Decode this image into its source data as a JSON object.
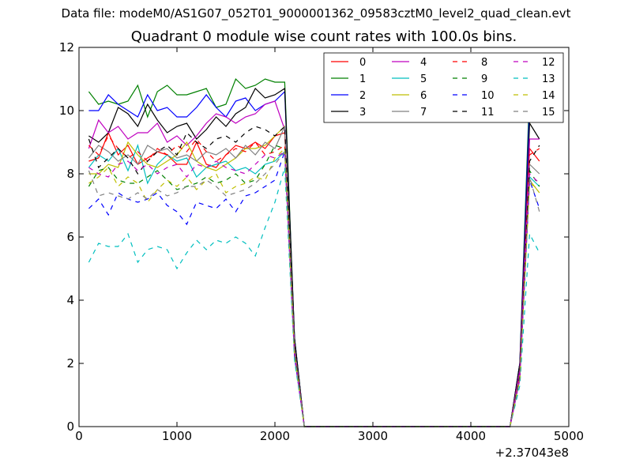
{
  "file_label": "Data file: modeM0/AS1G07_052T01_9000001362_09583cztM0_level2_quad_clean.evt",
  "chart_data": {
    "type": "line",
    "title": "Quadrant 0 module wise count rates with 100.0s bins.",
    "xlabel": "",
    "ylabel": "",
    "x_offset_label": "+2.37043e8",
    "xlim": [
      0,
      5000
    ],
    "ylim": [
      0,
      12
    ],
    "xticks": [
      0,
      1000,
      2000,
      3000,
      4000,
      5000
    ],
    "yticks": [
      0,
      2,
      4,
      6,
      8,
      10,
      12
    ],
    "grid": false,
    "legend_position": "top-right",
    "legend_columns": 4,
    "x": [
      100,
      200,
      300,
      400,
      500,
      600,
      700,
      800,
      900,
      1000,
      1100,
      1200,
      1300,
      1400,
      1500,
      1600,
      1700,
      1800,
      1900,
      2000,
      2100,
      2200,
      2300,
      2400,
      2500,
      2600,
      2700,
      2800,
      2900,
      3000,
      3100,
      3200,
      3300,
      3400,
      3500,
      3600,
      3700,
      3800,
      3900,
      4000,
      4100,
      4200,
      4300,
      4400,
      4500,
      4600,
      4700
    ],
    "series": [
      {
        "name": "0",
        "color": "#ff0000",
        "dash": "solid",
        "values": [
          8.4,
          8.5,
          9.3,
          8.6,
          8.9,
          8.3,
          8.5,
          8.7,
          8.6,
          8.3,
          8.3,
          9.0,
          8.3,
          8.2,
          8.6,
          8.9,
          8.8,
          9.0,
          8.8,
          9.2,
          9.3,
          2.5,
          0,
          0,
          0,
          0,
          0,
          0,
          0,
          0,
          0,
          0,
          0,
          0,
          0,
          0,
          0,
          0,
          0,
          0,
          0,
          0,
          0,
          0,
          1.6,
          8.8,
          8.4
        ]
      },
      {
        "name": "1",
        "color": "#008000",
        "dash": "solid",
        "values": [
          10.6,
          10.2,
          10.3,
          10.2,
          10.3,
          10.8,
          9.8,
          10.6,
          10.8,
          10.5,
          10.5,
          10.6,
          10.7,
          10.1,
          10.2,
          11.0,
          10.7,
          10.8,
          11.0,
          10.9,
          10.9,
          2.8,
          0,
          0,
          0,
          0,
          0,
          0,
          0,
          0,
          0,
          0,
          0,
          0,
          0,
          0,
          0,
          0,
          0,
          0,
          0,
          0,
          0,
          0,
          2.0,
          10.7,
          10.2
        ]
      },
      {
        "name": "2",
        "color": "#0000ff",
        "dash": "solid",
        "values": [
          10.0,
          10.0,
          10.5,
          10.2,
          10.0,
          9.8,
          10.5,
          10.0,
          10.1,
          9.8,
          9.8,
          10.1,
          10.5,
          10.1,
          9.8,
          10.3,
          10.4,
          10.0,
          10.2,
          10.3,
          10.6,
          2.8,
          0,
          0,
          0,
          0,
          0,
          0,
          0,
          0,
          0,
          0,
          0,
          0,
          0,
          0,
          0,
          0,
          0,
          0,
          0,
          0,
          0,
          0,
          2.0,
          10.2,
          9.8
        ]
      },
      {
        "name": "3",
        "color": "#000000",
        "dash": "solid",
        "values": [
          9.2,
          9.0,
          9.3,
          10.1,
          9.9,
          9.5,
          10.2,
          9.7,
          9.3,
          9.5,
          9.6,
          9.1,
          9.4,
          9.8,
          9.5,
          9.9,
          10.1,
          10.7,
          10.4,
          10.5,
          10.7,
          2.8,
          0,
          0,
          0,
          0,
          0,
          0,
          0,
          0,
          0,
          0,
          0,
          0,
          0,
          0,
          0,
          0,
          0,
          0,
          0,
          0,
          0,
          0,
          2.0,
          9.6,
          9.1
        ]
      },
      {
        "name": "4",
        "color": "#bf00bf",
        "dash": "solid",
        "values": [
          8.8,
          9.7,
          9.3,
          9.5,
          9.1,
          9.3,
          9.3,
          9.6,
          9.0,
          9.2,
          8.9,
          9.2,
          9.6,
          9.9,
          9.8,
          9.6,
          9.8,
          9.9,
          10.2,
          10.3,
          9.4,
          2.5,
          0,
          0,
          0,
          0,
          0,
          0,
          0,
          0,
          0,
          0,
          0,
          0,
          0,
          0,
          0,
          0,
          0,
          0,
          0,
          0,
          0,
          0,
          1.8,
          9.1,
          9.1
        ]
      },
      {
        "name": "5",
        "color": "#00bfbf",
        "dash": "solid",
        "values": [
          8.2,
          8.6,
          8.4,
          8.8,
          8.1,
          8.9,
          7.7,
          8.3,
          8.6,
          8.4,
          8.5,
          7.9,
          8.2,
          8.3,
          8.4,
          8.1,
          8.2,
          8.0,
          8.3,
          8.4,
          8.7,
          2.4,
          0,
          0,
          0,
          0,
          0,
          0,
          0,
          0,
          0,
          0,
          0,
          0,
          0,
          0,
          0,
          0,
          0,
          0,
          0,
          0,
          0,
          0,
          1.6,
          7.9,
          7.6
        ]
      },
      {
        "name": "6",
        "color": "#bfbf00",
        "dash": "solid",
        "values": [
          8.0,
          8.0,
          8.3,
          8.2,
          9.0,
          8.6,
          8.3,
          8.2,
          8.4,
          8.6,
          9.0,
          8.4,
          8.2,
          8.1,
          8.3,
          8.5,
          8.8,
          8.8,
          8.9,
          9.2,
          9.5,
          2.4,
          0,
          0,
          0,
          0,
          0,
          0,
          0,
          0,
          0,
          0,
          0,
          0,
          0,
          0,
          0,
          0,
          0,
          0,
          0,
          0,
          0,
          0,
          1.6,
          7.8,
          7.4
        ]
      },
      {
        "name": "7",
        "color": "#808080",
        "dash": "solid",
        "values": [
          8.5,
          8.9,
          8.7,
          8.4,
          8.6,
          8.3,
          8.9,
          8.7,
          8.8,
          8.5,
          8.6,
          8.4,
          8.7,
          8.6,
          8.8,
          8.5,
          8.9,
          8.6,
          9.0,
          8.8,
          9.5,
          2.5,
          0,
          0,
          0,
          0,
          0,
          0,
          0,
          0,
          0,
          0,
          0,
          0,
          0,
          0,
          0,
          0,
          0,
          0,
          0,
          0,
          0,
          0,
          1.6,
          8.3,
          8.0
        ]
      },
      {
        "name": "8",
        "color": "#ff0000",
        "dash": "dashed",
        "values": [
          8.9,
          8.6,
          9.2,
          8.8,
          8.5,
          8.7,
          8.4,
          8.8,
          8.6,
          8.9,
          8.7,
          9.1,
          8.7,
          8.4,
          8.6,
          8.8,
          8.7,
          9.0,
          8.6,
          8.7,
          8.9,
          2.4,
          0,
          0,
          0,
          0,
          0,
          0,
          0,
          0,
          0,
          0,
          0,
          0,
          0,
          0,
          0,
          0,
          0,
          0,
          0,
          0,
          0,
          0,
          1.6,
          8.6,
          8.8
        ]
      },
      {
        "name": "9",
        "color": "#008000",
        "dash": "dashed",
        "values": [
          7.6,
          8.1,
          8.2,
          7.8,
          7.7,
          7.7,
          7.9,
          8.1,
          7.8,
          7.5,
          7.6,
          7.7,
          7.9,
          7.7,
          7.8,
          8.0,
          7.7,
          7.8,
          8.3,
          8.9,
          8.8,
          2.3,
          0,
          0,
          0,
          0,
          0,
          0,
          0,
          0,
          0,
          0,
          0,
          0,
          0,
          0,
          0,
          0,
          0,
          0,
          0,
          0,
          0,
          0,
          1.5,
          8.1,
          7.6
        ]
      },
      {
        "name": "10",
        "color": "#0000ff",
        "dash": "dashed",
        "values": [
          6.9,
          7.2,
          6.7,
          7.4,
          7.2,
          7.1,
          7.2,
          7.4,
          7.0,
          6.8,
          6.4,
          7.1,
          7.0,
          6.9,
          7.2,
          6.8,
          7.3,
          7.4,
          7.6,
          7.8,
          8.7,
          2.2,
          0,
          0,
          0,
          0,
          0,
          0,
          0,
          0,
          0,
          0,
          0,
          0,
          0,
          0,
          0,
          0,
          0,
          0,
          0,
          0,
          0,
          0,
          1.5,
          7.8,
          6.9
        ]
      },
      {
        "name": "11",
        "color": "#000000",
        "dash": "dashed",
        "values": [
          9.1,
          8.2,
          8.5,
          8.8,
          8.5,
          8.0,
          8.4,
          8.7,
          8.9,
          8.6,
          9.3,
          9.0,
          8.8,
          9.1,
          9.2,
          9.0,
          9.3,
          9.5,
          9.4,
          9.2,
          9.5,
          2.4,
          0,
          0,
          0,
          0,
          0,
          0,
          0,
          0,
          0,
          0,
          0,
          0,
          0,
          0,
          0,
          0,
          0,
          0,
          0,
          0,
          0,
          0,
          1.6,
          8.4,
          8.9
        ]
      },
      {
        "name": "12",
        "color": "#bf00bf",
        "dash": "dashed",
        "values": [
          8.2,
          8.0,
          7.9,
          8.3,
          8.4,
          8.1,
          8.3,
          8.0,
          8.2,
          8.3,
          7.9,
          8.3,
          8.2,
          8.4,
          8.2,
          8.1,
          8.0,
          8.3,
          8.6,
          8.5,
          8.7,
          2.3,
          0,
          0,
          0,
          0,
          0,
          0,
          0,
          0,
          0,
          0,
          0,
          0,
          0,
          0,
          0,
          0,
          0,
          0,
          0,
          0,
          0,
          0,
          1.5,
          8.0,
          7.7
        ]
      },
      {
        "name": "13",
        "color": "#00bfbf",
        "dash": "dashed",
        "values": [
          5.2,
          5.8,
          5.7,
          5.7,
          6.1,
          5.2,
          5.6,
          5.7,
          5.6,
          5.0,
          5.5,
          5.9,
          5.6,
          5.9,
          5.8,
          6.0,
          5.8,
          5.4,
          6.3,
          7.1,
          8.2,
          2.1,
          0,
          0,
          0,
          0,
          0,
          0,
          0,
          0,
          0,
          0,
          0,
          0,
          0,
          0,
          0,
          0,
          0,
          0,
          0,
          0,
          0,
          0,
          1.3,
          6.1,
          5.5
        ]
      },
      {
        "name": "14",
        "color": "#bfbf00",
        "dash": "dashed",
        "values": [
          7.7,
          7.9,
          8.2,
          7.6,
          7.9,
          7.7,
          7.1,
          7.5,
          7.8,
          7.6,
          7.9,
          7.5,
          7.8,
          8.0,
          7.4,
          7.6,
          7.7,
          7.9,
          7.8,
          8.5,
          8.8,
          2.3,
          0,
          0,
          0,
          0,
          0,
          0,
          0,
          0,
          0,
          0,
          0,
          0,
          0,
          0,
          0,
          0,
          0,
          0,
          0,
          0,
          0,
          0,
          1.5,
          7.7,
          7.5
        ]
      },
      {
        "name": "15",
        "color": "#808080",
        "dash": "dashed",
        "values": [
          8.1,
          7.3,
          7.4,
          7.3,
          7.2,
          7.4,
          7.2,
          7.5,
          7.3,
          7.4,
          7.6,
          7.6,
          7.8,
          7.6,
          7.3,
          7.4,
          7.5,
          7.7,
          8.0,
          8.3,
          8.7,
          2.3,
          0,
          0,
          0,
          0,
          0,
          0,
          0,
          0,
          0,
          0,
          0,
          0,
          0,
          0,
          0,
          0,
          0,
          0,
          0,
          0,
          0,
          0,
          1.5,
          7.9,
          6.8
        ]
      }
    ]
  }
}
